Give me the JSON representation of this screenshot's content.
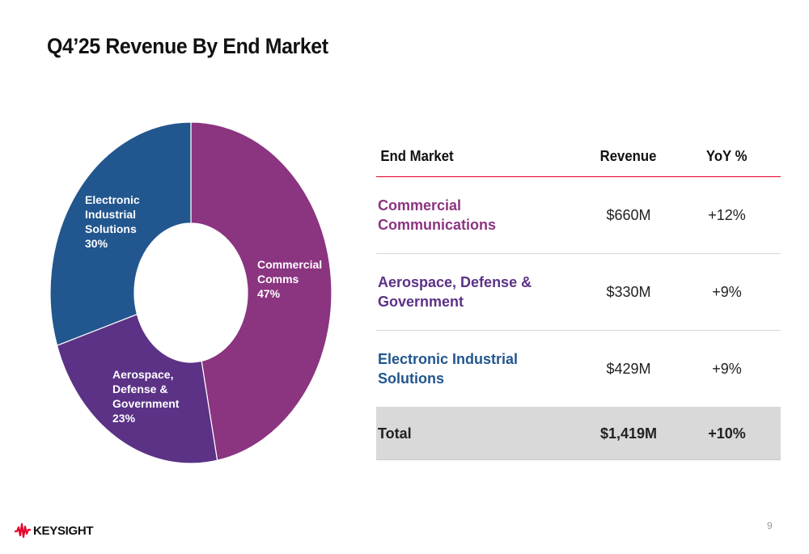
{
  "title": "Q4’25 Revenue By End Market",
  "chart_data": {
    "type": "pie",
    "subtype": "donut",
    "title": "",
    "start": "top, clockwise",
    "slices": [
      {
        "name": "Commercial Comms",
        "label_lines": [
          "Commercial",
          "Comms",
          "47%"
        ],
        "value": 47,
        "color": "#8b3480"
      },
      {
        "name": "Aerospace, Defense & Government",
        "label_lines": [
          "Aerospace,",
          "Defense &",
          "Government",
          "23%"
        ],
        "value": 23,
        "color": "#5b3286"
      },
      {
        "name": "Electronic Industrial Solutions",
        "label_lines": [
          "Electronic",
          "Industrial",
          "Solutions",
          "30%"
        ],
        "value": 30,
        "color": "#22568e"
      }
    ],
    "legend": "none"
  },
  "table": {
    "headers": [
      "End Market",
      "Revenue",
      "YoY %"
    ],
    "rows": [
      {
        "market": "Commercial Communications",
        "revenue": "$660M",
        "yoy": "+12%",
        "color": "#8b3480"
      },
      {
        "market": "Aerospace, Defense & Government",
        "revenue": "$330M",
        "yoy": "+9%",
        "color": "#5b3286"
      },
      {
        "market": "Electronic Industrial Solutions",
        "revenue": "$429M",
        "yoy": "+9%",
        "color": "#22568e"
      }
    ],
    "total": {
      "label": "Total",
      "revenue": "$1,419M",
      "yoy": "+10%"
    }
  },
  "colors": {
    "accent_line": "#e4002b",
    "brand_red": "#e4002b"
  },
  "footer": {
    "logo_icon": "keysight-wave-icon",
    "logo_text": "KEYSIGHT",
    "page_number": "9"
  }
}
